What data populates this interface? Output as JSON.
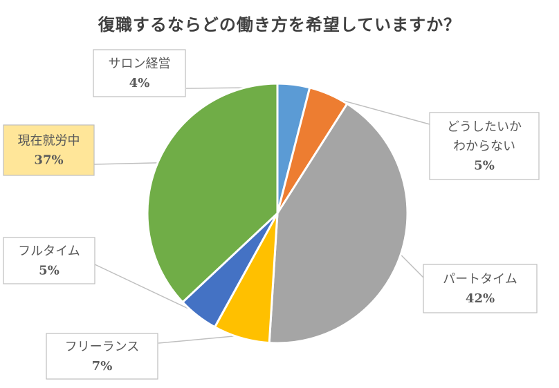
{
  "chart_data": {
    "type": "pie",
    "title": "復職するならどの働き方を希望していますか？",
    "categories": [
      "サロン経営",
      "どうしたいかわからない",
      "パートタイム",
      "フリーランス",
      "フルタイム",
      "現在就労中"
    ],
    "values": [
      4,
      5,
      42,
      7,
      5,
      37
    ],
    "value_labels": [
      "4%",
      "5%",
      "42%",
      "7%",
      "5%",
      "37%"
    ],
    "label_lines": [
      [
        "サロン経営"
      ],
      [
        "どうしたいか",
        "わからない"
      ],
      [
        "パートタイム"
      ],
      [
        "フリーランス"
      ],
      [
        "フルタイム"
      ],
      [
        "現在就労中"
      ]
    ],
    "colors": [
      "#5b9bd5",
      "#ed7d31",
      "#a5a5a5",
      "#ffc000",
      "#4472c4",
      "#70ad47"
    ],
    "label_box_fills": [
      "#ffffff",
      "#ffffff",
      "#ffffff",
      "#ffffff",
      "#ffffff",
      "#ffe699"
    ],
    "start_angle_deg": 0,
    "direction": "clockwise",
    "legend": "none"
  }
}
